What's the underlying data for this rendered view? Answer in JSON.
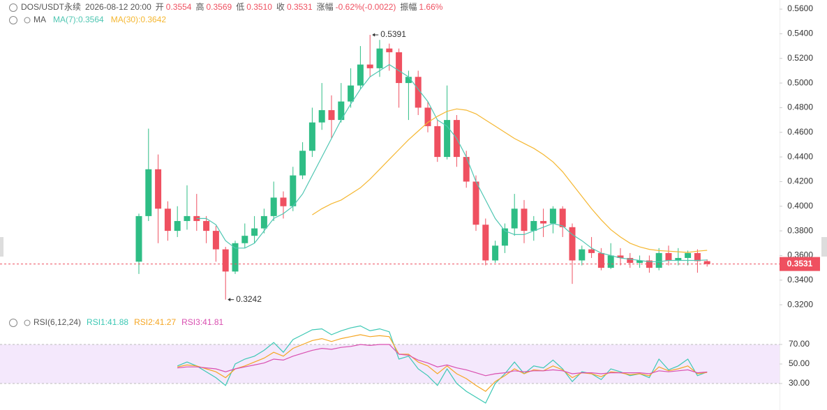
{
  "header": {
    "symbol": "DOS/USDT永续",
    "time": "2026-08-12 20:00",
    "items": [
      {
        "label": "开",
        "value": "0.3554"
      },
      {
        "label": "高",
        "value": "0.3569"
      },
      {
        "label": "低",
        "value": "0.3510"
      },
      {
        "label": "收",
        "value": "0.3531"
      },
      {
        "label": "涨幅",
        "value": "-0.62%(-0.0022)"
      },
      {
        "label": "振幅",
        "value": "1.66%"
      }
    ]
  },
  "chart_data": [
    {
      "type": "candlestick",
      "legend_title": "MA",
      "up_color": "#2ebd85",
      "down_color": "#ef5060",
      "open": [
        0.355,
        0.392,
        0.43,
        0.398,
        0.38,
        0.388,
        0.392,
        0.388,
        0.38,
        0.365,
        0.347,
        0.37,
        0.376,
        0.382,
        0.392,
        0.407,
        0.4,
        0.425,
        0.445,
        0.468,
        0.478,
        0.47,
        0.485,
        0.498,
        0.515,
        0.512,
        0.528,
        0.525,
        0.5,
        0.505,
        0.48,
        0.465,
        0.44,
        0.47,
        0.44,
        0.42,
        0.385,
        0.356,
        0.368,
        0.382,
        0.398,
        0.38,
        0.388,
        0.386,
        0.398,
        0.383,
        0.356,
        0.365,
        0.362,
        0.35,
        0.36,
        0.358,
        0.354,
        0.356,
        0.35,
        0.362,
        0.356,
        0.358,
        0.362,
        0.3554
      ],
      "high": [
        0.394,
        0.463,
        0.442,
        0.404,
        0.4,
        0.417,
        0.41,
        0.392,
        0.384,
        0.367,
        0.372,
        0.386,
        0.392,
        0.398,
        0.42,
        0.412,
        0.432,
        0.452,
        0.48,
        0.5,
        0.49,
        0.5,
        0.512,
        0.53,
        0.5391,
        0.535,
        0.532,
        0.528,
        0.51,
        0.51,
        0.485,
        0.47,
        0.498,
        0.474,
        0.445,
        0.425,
        0.39,
        0.372,
        0.386,
        0.41,
        0.405,
        0.392,
        0.398,
        0.4,
        0.4,
        0.386,
        0.368,
        0.375,
        0.366,
        0.37,
        0.366,
        0.362,
        0.36,
        0.36,
        0.366,
        0.368,
        0.366,
        0.364,
        0.365,
        0.3569
      ],
      "low": [
        0.345,
        0.388,
        0.37,
        0.372,
        0.375,
        0.381,
        0.38,
        0.37,
        0.355,
        0.3242,
        0.345,
        0.366,
        0.37,
        0.378,
        0.388,
        0.39,
        0.396,
        0.422,
        0.44,
        0.462,
        0.455,
        0.468,
        0.48,
        0.495,
        0.505,
        0.505,
        0.51,
        0.48,
        0.47,
        0.474,
        0.46,
        0.436,
        0.438,
        0.432,
        0.415,
        0.38,
        0.352,
        0.354,
        0.362,
        0.376,
        0.37,
        0.372,
        0.375,
        0.378,
        0.375,
        0.337,
        0.352,
        0.358,
        0.348,
        0.349,
        0.352,
        0.35,
        0.35,
        0.346,
        0.348,
        0.352,
        0.352,
        0.352,
        0.346,
        0.351
      ],
      "close": [
        0.392,
        0.43,
        0.398,
        0.38,
        0.388,
        0.392,
        0.388,
        0.38,
        0.365,
        0.347,
        0.37,
        0.376,
        0.382,
        0.392,
        0.407,
        0.4,
        0.425,
        0.445,
        0.468,
        0.478,
        0.47,
        0.485,
        0.498,
        0.515,
        0.512,
        0.528,
        0.525,
        0.5,
        0.505,
        0.48,
        0.465,
        0.44,
        0.47,
        0.44,
        0.42,
        0.385,
        0.356,
        0.368,
        0.382,
        0.398,
        0.38,
        0.388,
        0.386,
        0.398,
        0.383,
        0.356,
        0.365,
        0.362,
        0.35,
        0.36,
        0.358,
        0.354,
        0.356,
        0.35,
        0.362,
        0.356,
        0.358,
        0.362,
        0.3554,
        0.3531
      ],
      "series": [
        {
          "name": "MA(7)",
          "label": "MA(7):0.3564",
          "color": "#4fc6b2",
          "values": [
            null,
            null,
            null,
            null,
            null,
            null,
            0.39,
            0.39,
            0.385,
            0.372,
            0.366,
            0.366,
            0.37,
            0.38,
            0.39,
            0.394,
            0.4,
            0.41,
            0.425,
            0.44,
            0.455,
            0.47,
            0.483,
            0.495,
            0.505,
            0.51,
            0.515,
            0.51,
            0.505,
            0.495,
            0.485,
            0.47,
            0.465,
            0.455,
            0.44,
            0.42,
            0.405,
            0.39,
            0.38,
            0.377,
            0.377,
            0.38,
            0.383,
            0.386,
            0.384,
            0.377,
            0.372,
            0.366,
            0.362,
            0.36,
            0.358,
            0.357,
            0.356,
            0.355,
            0.355,
            0.356,
            0.356,
            0.356,
            0.356,
            0.3564
          ]
        },
        {
          "name": "MA(30)",
          "label": "MA(30):0.3642",
          "color": "#f5b731",
          "values": [
            null,
            null,
            null,
            null,
            null,
            null,
            null,
            null,
            null,
            null,
            null,
            null,
            null,
            null,
            null,
            null,
            null,
            null,
            0.393,
            0.398,
            0.402,
            0.405,
            0.41,
            0.415,
            0.422,
            0.43,
            0.438,
            0.446,
            0.454,
            0.461,
            0.468,
            0.473,
            0.477,
            0.479,
            0.478,
            0.475,
            0.47,
            0.465,
            0.46,
            0.455,
            0.451,
            0.447,
            0.442,
            0.436,
            0.428,
            0.418,
            0.408,
            0.398,
            0.389,
            0.381,
            0.375,
            0.37,
            0.367,
            0.365,
            0.364,
            0.3635,
            0.363,
            0.3625,
            0.3635,
            0.3642
          ]
        }
      ],
      "annotations": [
        {
          "label": "0.5391",
          "value": 0.5391
        },
        {
          "label": "0.3242",
          "value": 0.3242
        }
      ],
      "last_price": {
        "label": "0.3531",
        "value": 0.3531
      },
      "ylim": [
        0.3127,
        0.5674
      ],
      "yticks": [
        {
          "value": 0.56,
          "label": "0.5600"
        },
        {
          "value": 0.54,
          "label": "0.5400"
        },
        {
          "value": 0.52,
          "label": "0.5200"
        },
        {
          "value": 0.5,
          "label": "0.5000"
        },
        {
          "value": 0.48,
          "label": "0.4800"
        },
        {
          "value": 0.46,
          "label": "0.4600"
        },
        {
          "value": 0.44,
          "label": "0.4400"
        },
        {
          "value": 0.42,
          "label": "0.4200"
        },
        {
          "value": 0.4,
          "label": "0.4000"
        },
        {
          "value": 0.38,
          "label": "0.3800"
        },
        {
          "value": 0.36,
          "label": "0.3600"
        },
        {
          "value": 0.34,
          "label": "0.3400"
        },
        {
          "value": 0.32,
          "label": "0.3200"
        }
      ]
    },
    {
      "type": "line",
      "title": "RSI(6,12,24)",
      "band": [
        30,
        70
      ],
      "band_color": "#f4e8fc",
      "ylim": [
        10,
        90
      ],
      "yticks": [
        {
          "value": 70,
          "label": "70.00"
        },
        {
          "value": 50,
          "label": "50.00"
        },
        {
          "value": 30,
          "label": "30.00"
        }
      ],
      "series": [
        {
          "name": "RSI1",
          "label": "RSI1:41.88",
          "color": "#3cc8b4",
          "values": [
            null,
            null,
            null,
            null,
            48,
            52,
            48,
            42,
            36,
            28,
            50,
            55,
            58,
            64,
            72,
            62,
            75,
            80,
            85,
            86,
            80,
            84,
            87,
            89,
            84,
            86,
            83,
            55,
            58,
            45,
            38,
            28,
            45,
            30,
            22,
            16,
            10,
            30,
            40,
            52,
            40,
            48,
            46,
            54,
            45,
            32,
            42,
            40,
            34,
            45,
            42,
            38,
            40,
            36,
            55,
            44,
            48,
            55,
            38,
            41.88
          ]
        },
        {
          "name": "RSI2",
          "label": "RSI2:41.27",
          "color": "#f5a623",
          "values": [
            null,
            null,
            null,
            null,
            47,
            49,
            48,
            45,
            42,
            36,
            45,
            48,
            52,
            56,
            62,
            58,
            66,
            70,
            74,
            76,
            73,
            76,
            78,
            80,
            78,
            79,
            78,
            60,
            60,
            52,
            48,
            40,
            48,
            40,
            35,
            28,
            22,
            32,
            38,
            45,
            40,
            44,
            43,
            48,
            44,
            36,
            41,
            40,
            37,
            42,
            41,
            39,
            40,
            38,
            47,
            43,
            45,
            48,
            40,
            41.27
          ]
        },
        {
          "name": "RSI3",
          "label": "RSI3:41.81",
          "color": "#d94fb0",
          "values": [
            null,
            null,
            null,
            null,
            46,
            47,
            47,
            46,
            45,
            42,
            45,
            47,
            49,
            51,
            55,
            54,
            58,
            61,
            64,
            66,
            65,
            67,
            68,
            70,
            69,
            70,
            70,
            60,
            59,
            54,
            51,
            47,
            49,
            46,
            44,
            41,
            38,
            40,
            41,
            43,
            42,
            43,
            43,
            44,
            43,
            40,
            41,
            41,
            40,
            41,
            41,
            41,
            41,
            40,
            43,
            42,
            43,
            44,
            41,
            41.81
          ]
        }
      ]
    }
  ]
}
